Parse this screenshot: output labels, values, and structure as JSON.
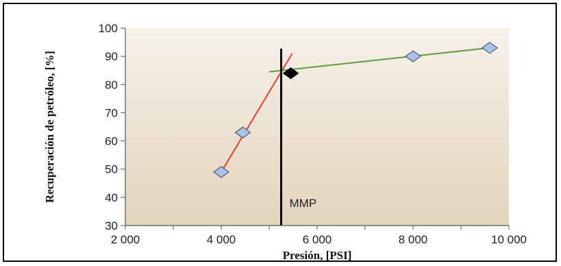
{
  "chart_data": {
    "type": "scatter",
    "title": "",
    "xlabel": "Presión, [PSI]",
    "ylabel": "Recuperación de petróleo, [%]",
    "xlim": [
      2000,
      10000
    ],
    "ylim": [
      30,
      100
    ],
    "x_ticks": [
      2000,
      4000,
      6000,
      8000,
      10000
    ],
    "x_tick_labels": [
      "2 000",
      "4 000",
      "6 000",
      "8 000",
      "10 000"
    ],
    "y_ticks": [
      30,
      40,
      50,
      60,
      70,
      80,
      90,
      100
    ],
    "y_tick_labels": [
      "30",
      "40",
      "50",
      "60",
      "70",
      "80",
      "90",
      "100"
    ],
    "grid": false,
    "background": "gradient",
    "points": [
      {
        "x": 4000,
        "y": 49
      },
      {
        "x": 4450,
        "y": 63
      },
      {
        "x": 8000,
        "y": 90
      },
      {
        "x": 9600,
        "y": 93
      }
    ],
    "highlight_point": {
      "x": 5450,
      "y": 84,
      "color": "#000000"
    },
    "trend_lines": [
      {
        "x": [
          4000,
          5480
        ],
        "y": [
          49,
          91
        ],
        "color": "#ee3b2f"
      },
      {
        "x": [
          5000,
          9600
        ],
        "y": [
          84.5,
          93
        ],
        "color": "#5a9a3a"
      }
    ],
    "vline": {
      "x": 5250,
      "label": "MMP",
      "color": "#000000"
    },
    "colors": {
      "marker_fill": "#a8c2e8",
      "marker_stroke": "#4a5a78",
      "bg_top": "#f6f1e9",
      "bg_bottom": "#e3d4bc"
    }
  }
}
